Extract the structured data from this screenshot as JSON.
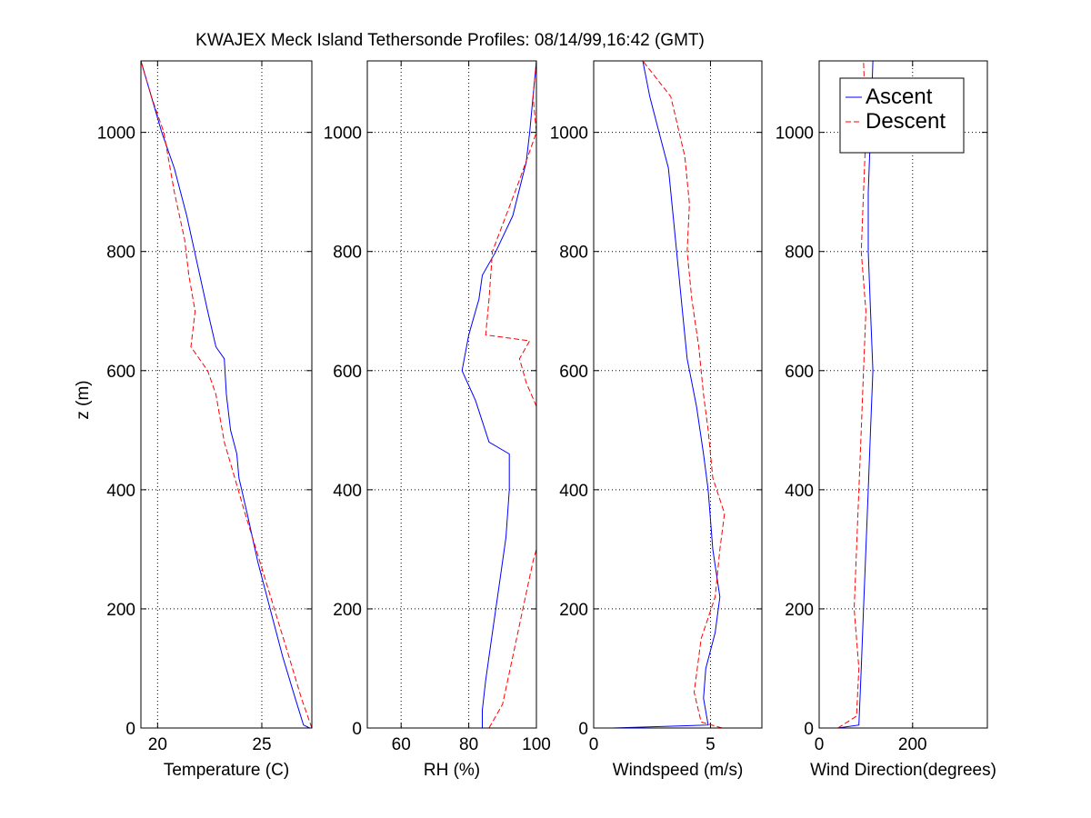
{
  "chart_data": {
    "type": "line",
    "title": "KWAJEX Meck Island Tethersonde Profiles: 08/14/99,16:42 (GMT)",
    "ylabel": "z (m)",
    "ylim": [
      0,
      1120
    ],
    "yticks": [
      0,
      200,
      400,
      600,
      800,
      1000
    ],
    "grid": true,
    "legend": {
      "placement": "top-right of fourth panel",
      "entries": [
        {
          "name": "Ascent",
          "color": "#0000ff",
          "style": "solid"
        },
        {
          "name": "Descent",
          "color": "#ff0000",
          "style": "dashed"
        }
      ]
    },
    "panels": [
      {
        "xlabel": "Temperature (C)",
        "xlim": [
          19.2,
          27.4
        ],
        "xticks": [
          20,
          25
        ],
        "series": [
          {
            "name": "Ascent",
            "color": "#0000ff",
            "dashed": false,
            "points": [
              [
                27.3,
                0
              ],
              [
                27.0,
                5
              ],
              [
                26.6,
                50
              ],
              [
                26.0,
                120
              ],
              [
                25.4,
                200
              ],
              [
                24.8,
                280
              ],
              [
                24.3,
                360
              ],
              [
                23.9,
                420
              ],
              [
                23.8,
                460
              ],
              [
                23.5,
                500
              ],
              [
                23.3,
                560
              ],
              [
                23.2,
                620
              ],
              [
                22.8,
                640
              ],
              [
                22.4,
                700
              ],
              [
                21.9,
                780
              ],
              [
                21.4,
                860
              ],
              [
                20.8,
                940
              ],
              [
                20.2,
                1000
              ],
              [
                19.7,
                1060
              ],
              [
                19.2,
                1120
              ]
            ]
          },
          {
            "name": "Descent",
            "color": "#ff0000",
            "dashed": true,
            "points": [
              [
                27.4,
                0
              ],
              [
                26.9,
                50
              ],
              [
                26.3,
                120
              ],
              [
                25.6,
                200
              ],
              [
                24.9,
                280
              ],
              [
                24.2,
                360
              ],
              [
                23.7,
                420
              ],
              [
                23.2,
                480
              ],
              [
                22.8,
                560
              ],
              [
                22.4,
                600
              ],
              [
                21.6,
                640
              ],
              [
                21.8,
                700
              ],
              [
                21.5,
                760
              ],
              [
                21.3,
                820
              ],
              [
                20.8,
                900
              ],
              [
                20.3,
                1000
              ],
              [
                19.7,
                1060
              ],
              [
                19.2,
                1120
              ]
            ]
          }
        ]
      },
      {
        "xlabel": "RH (%)",
        "xlim": [
          50,
          100
        ],
        "xticks": [
          60,
          80,
          100
        ],
        "series": [
          {
            "name": "Ascent",
            "color": "#0000ff",
            "dashed": false,
            "points": [
              [
                84,
                0
              ],
              [
                84,
                30
              ],
              [
                85,
                80
              ],
              [
                87,
                160
              ],
              [
                89,
                240
              ],
              [
                91,
                320
              ],
              [
                92,
                400
              ],
              [
                92,
                460
              ],
              [
                86,
                480
              ],
              [
                82,
                550
              ],
              [
                78,
                600
              ],
              [
                80,
                660
              ],
              [
                83,
                720
              ],
              [
                84,
                760
              ],
              [
                88,
                800
              ],
              [
                93,
                860
              ],
              [
                97,
                950
              ],
              [
                98,
                1000
              ],
              [
                99,
                1060
              ],
              [
                100,
                1120
              ]
            ]
          },
          {
            "name": "Descent",
            "color": "#ff0000",
            "dashed": true,
            "points": [
              [
                86,
                0
              ],
              [
                90,
                40
              ],
              [
                93,
                120
              ],
              [
                96,
                200
              ],
              [
                99,
                280
              ],
              [
                100,
                300
              ]
            ]
          },
          {
            "name": "Descent",
            "color": "#ff0000",
            "dashed": true,
            "points": [
              [
                100,
                540
              ],
              [
                97,
                580
              ],
              [
                95,
                620
              ],
              [
                98,
                650
              ],
              [
                85,
                660
              ],
              [
                86,
                720
              ],
              [
                87,
                800
              ],
              [
                91,
                860
              ],
              [
                95,
                920
              ],
              [
                100,
                1000
              ],
              [
                99,
                1060
              ],
              [
                100,
                1120
              ]
            ]
          }
        ]
      },
      {
        "xlabel": "Windspeed (m/s)",
        "xlim": [
          0,
          7.2
        ],
        "xticks": [
          0,
          5
        ],
        "series": [
          {
            "name": "Ascent",
            "color": "#0000ff",
            "dashed": false,
            "points": [
              [
                0.8,
                0
              ],
              [
                4.9,
                5
              ],
              [
                4.7,
                50
              ],
              [
                4.8,
                100
              ],
              [
                5.2,
                160
              ],
              [
                5.4,
                220
              ],
              [
                5.1,
                300
              ],
              [
                4.9,
                400
              ],
              [
                4.7,
                460
              ],
              [
                4.4,
                540
              ],
              [
                4.0,
                620
              ],
              [
                3.8,
                700
              ],
              [
                3.6,
                780
              ],
              [
                3.4,
                860
              ],
              [
                3.2,
                940
              ],
              [
                2.8,
                1000
              ],
              [
                2.4,
                1060
              ],
              [
                2.1,
                1120
              ]
            ]
          },
          {
            "name": "Descent",
            "color": "#ff0000",
            "dashed": true,
            "points": [
              [
                5.5,
                0
              ],
              [
                4.6,
                10
              ],
              [
                4.3,
                60
              ],
              [
                4.6,
                150
              ],
              [
                5.2,
                220
              ],
              [
                5.4,
                300
              ],
              [
                5.6,
                360
              ],
              [
                5.1,
                420
              ],
              [
                4.9,
                500
              ],
              [
                4.7,
                560
              ],
              [
                4.5,
                640
              ],
              [
                4.2,
                720
              ],
              [
                4.0,
                800
              ],
              [
                4.1,
                880
              ],
              [
                3.9,
                960
              ],
              [
                3.3,
                1060
              ],
              [
                2.1,
                1120
              ]
            ]
          }
        ]
      },
      {
        "xlabel": "Wind Direction(degrees)",
        "xlim": [
          0,
          360
        ],
        "xticks": [
          0,
          200
        ],
        "series": [
          {
            "name": "Ascent",
            "color": "#0000ff",
            "dashed": false,
            "points": [
              [
                40,
                0
              ],
              [
                85,
                5
              ],
              [
                90,
                100
              ],
              [
                95,
                200
              ],
              [
                100,
                300
              ],
              [
                105,
                400
              ],
              [
                110,
                500
              ],
              [
                115,
                600
              ],
              [
                110,
                700
              ],
              [
                105,
                800
              ],
              [
                105,
                900
              ],
              [
                110,
                1000
              ],
              [
                115,
                1120
              ]
            ]
          },
          {
            "name": "Descent",
            "color": "#ff0000",
            "dashed": true,
            "points": [
              [
                40,
                0
              ],
              [
                80,
                20
              ],
              [
                85,
                100
              ],
              [
                75,
                200
              ],
              [
                80,
                300
              ],
              [
                85,
                400
              ],
              [
                90,
                500
              ],
              [
                95,
                600
              ],
              [
                100,
                700
              ],
              [
                90,
                800
              ],
              [
                95,
                900
              ],
              [
                100,
                1000
              ],
              [
                95,
                1120
              ]
            ]
          }
        ]
      }
    ]
  }
}
